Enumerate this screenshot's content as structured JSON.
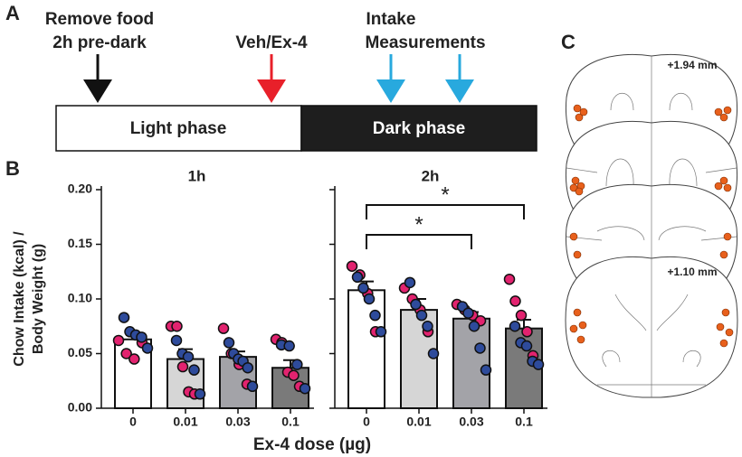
{
  "panel_a": {
    "letter": "A",
    "remove_food": [
      "Remove food",
      "2h pre-dark"
    ],
    "injection": "Veh/Ex-4",
    "intake": [
      "Intake",
      "Measurements"
    ],
    "light_phase": "Light phase",
    "dark_phase": "Dark phase"
  },
  "panel_b": {
    "letter": "B",
    "x_label": "Ex-4 dose (µg)"
  },
  "panel_c": {
    "letter": "C",
    "section_labels": [
      "+1.94 mm",
      "+1.10 mm"
    ]
  },
  "chart_data": [
    {
      "type": "bar",
      "title": "1h",
      "y_label": [
        "Chow Intake (kcal) /",
        "Body Weight (g)"
      ],
      "categories": [
        "0",
        "0.01",
        "0.03",
        "0.1"
      ],
      "values": [
        0.063,
        0.045,
        0.047,
        0.037
      ],
      "errors": [
        0.004,
        0.009,
        0.005,
        0.007
      ],
      "bar_colors": [
        "#ffffff",
        "#d6d6d6",
        "#a3a3a8",
        "#7a7a7a"
      ],
      "dot_series": [
        {
          "color": "#e2236f",
          "values": [
            [
              0.062,
              0.05,
              0.045,
              0.06
            ],
            [
              0.075,
              0.075,
              0.038,
              0.015,
              0.013
            ],
            [
              0.073,
              0.05,
              0.04,
              0.022
            ],
            [
              0.063,
              0.06,
              0.033,
              0.03,
              0.02
            ]
          ]
        },
        {
          "color": "#2e4b9b",
          "values": [
            [
              0.083,
              0.07,
              0.067,
              0.065,
              0.055
            ],
            [
              0.062,
              0.05,
              0.047,
              0.035,
              0.013
            ],
            [
              0.06,
              0.05,
              0.045,
              0.043,
              0.037,
              0.02
            ],
            [
              0.058,
              0.057,
              0.04,
              0.018
            ]
          ]
        }
      ],
      "ylim": [
        0,
        0.2
      ],
      "yticks": [
        {
          "value": 0,
          "label": "0.00"
        },
        0.05,
        {
          "value": 0.1,
          "label": "0.10"
        },
        0.15,
        {
          "value": 0.2,
          "label": "0.20"
        }
      ],
      "show_tick_labels": true,
      "significance": []
    },
    {
      "type": "bar",
      "title": "2h",
      "categories": [
        "0",
        "0.01",
        "0.03",
        "0.1"
      ],
      "values": [
        0.108,
        0.09,
        0.082,
        0.073
      ],
      "errors": [
        0.008,
        0.01,
        0.006,
        0.008
      ],
      "bar_colors": [
        "#ffffff",
        "#d6d6d6",
        "#a3a3a8",
        "#7a7a7a"
      ],
      "dot_series": [
        {
          "color": "#e2236f",
          "values": [
            [
              0.13,
              0.122,
              0.105,
              0.07
            ],
            [
              0.11,
              0.1,
              0.09,
              0.07
            ],
            [
              0.095,
              0.09,
              0.085,
              0.08
            ],
            [
              0.118,
              0.098,
              0.085,
              0.07,
              0.048
            ]
          ]
        },
        {
          "color": "#2e4b9b",
          "values": [
            [
              0.12,
              0.11,
              0.1,
              0.085,
              0.07
            ],
            [
              0.115,
              0.095,
              0.085,
              0.075,
              0.05
            ],
            [
              0.093,
              0.087,
              0.075,
              0.055,
              0.035
            ],
            [
              0.075,
              0.06,
              0.057,
              0.043,
              0.04
            ]
          ]
        }
      ],
      "ylim": [
        0,
        0.2
      ],
      "yticks": [
        0,
        0.05,
        0.1,
        0.15,
        0.2
      ],
      "show_tick_labels": false,
      "significance": [
        {
          "from": 0,
          "to": 2,
          "label": "*"
        },
        {
          "from": 0,
          "to": 3,
          "label": "*"
        }
      ]
    }
  ]
}
